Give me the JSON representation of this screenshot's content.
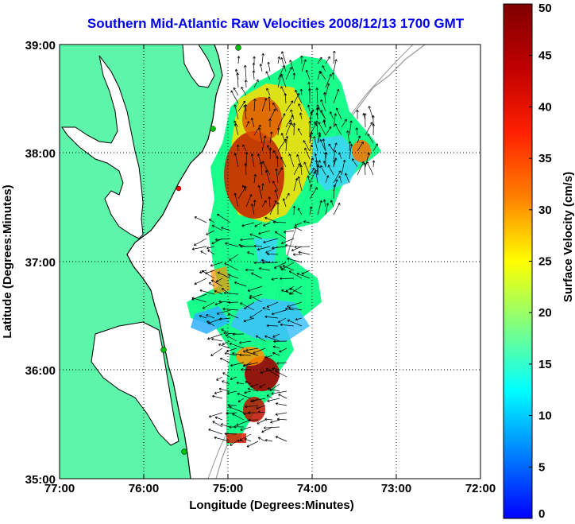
{
  "title": "Southern Mid-Atlantic Raw Velocities 2008/12/13 1700 GMT",
  "axes": {
    "xlabel": "Longitude (Degrees:Minutes)",
    "ylabel": "Latitude (Degrees:Minutes)",
    "xticks": [
      "77:00",
      "76:00",
      "75:00",
      "74:00",
      "73:00",
      "72:00"
    ],
    "yticks": [
      "39:00",
      "38:00",
      "37:00",
      "36:00",
      "35:00"
    ]
  },
  "colorbar": {
    "label": "Surface Velocity (cm/s)",
    "ticks": [
      "0",
      "5",
      "10",
      "15",
      "20",
      "25",
      "30",
      "35",
      "40",
      "45",
      "50"
    ],
    "range": [
      0,
      50
    ]
  },
  "colors": {
    "land": "#5cf5a9",
    "title": "#0000ee",
    "coast": "#000000",
    "bathymetry": "#999999"
  }
}
